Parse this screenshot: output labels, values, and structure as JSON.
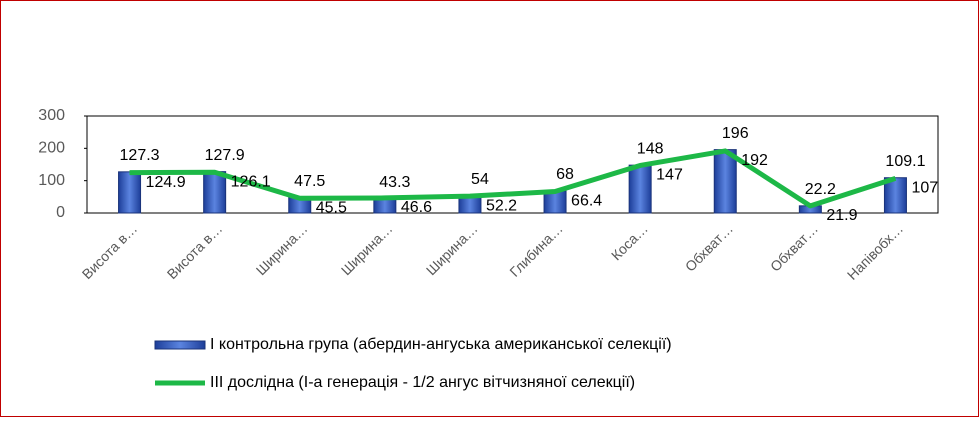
{
  "chart_data": {
    "type": "bar-line",
    "categories": [
      "Висота в…",
      "Висота в…",
      "Ширина…",
      "Ширина…",
      "Ширина…",
      "Глибина…",
      "Коса…",
      "Обхват…",
      "Обхват…",
      "Напівобх…"
    ],
    "series": [
      {
        "name": "І контрольна група (абердин-ангуська американської селекції)",
        "type": "bar",
        "color": "#2f55b8",
        "values": [
          127.3,
          127.9,
          47.5,
          43.3,
          54,
          68,
          148,
          196,
          22.2,
          109.1
        ]
      },
      {
        "name": "ІІІ дослідна (І-а генерація - 1/2 ангус вітчизняної селекції)",
        "type": "line",
        "color": "#1db847",
        "values": [
          124.9,
          126.1,
          45.5,
          46.6,
          52.2,
          66.4,
          147,
          192,
          21.9,
          107
        ]
      }
    ],
    "ylim": [
      0,
      300
    ],
    "yticks": [
      0,
      100,
      200,
      300
    ]
  }
}
